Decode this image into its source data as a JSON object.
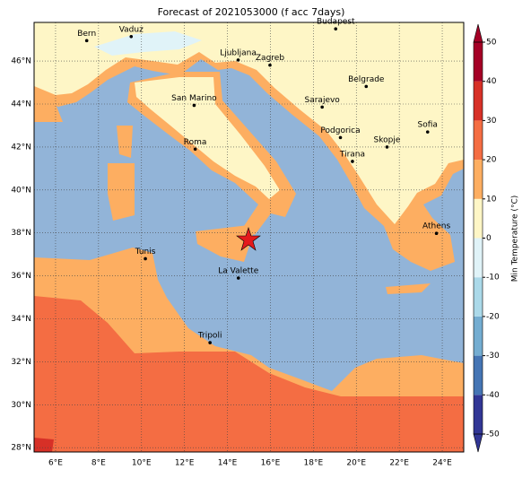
{
  "map": {
    "title": "Forecast of 2021053000 (f acc 7days)",
    "xlim": [
      5,
      25
    ],
    "ylim": [
      27.8,
      47.8
    ],
    "xticks": [
      {
        "value": 6,
        "label": "6°E"
      },
      {
        "value": 8,
        "label": "8°E"
      },
      {
        "value": 10,
        "label": "10°E"
      },
      {
        "value": 12,
        "label": "12°E"
      },
      {
        "value": 14,
        "label": "14°E"
      },
      {
        "value": 16,
        "label": "16°E"
      },
      {
        "value": 18,
        "label": "18°E"
      },
      {
        "value": 20,
        "label": "20°E"
      },
      {
        "value": 22,
        "label": "22°E"
      },
      {
        "value": 24,
        "label": "24°E"
      }
    ],
    "yticks": [
      {
        "value": 28,
        "label": "28°N"
      },
      {
        "value": 30,
        "label": "30°N"
      },
      {
        "value": 32,
        "label": "32°N"
      },
      {
        "value": 34,
        "label": "34°N"
      },
      {
        "value": 36,
        "label": "36°N"
      },
      {
        "value": 38,
        "label": "38°N"
      },
      {
        "value": 40,
        "label": "40°N"
      },
      {
        "value": 42,
        "label": "42°N"
      },
      {
        "value": 44,
        "label": "44°N"
      },
      {
        "value": 46,
        "label": "46°N"
      }
    ],
    "grid": true,
    "cities": [
      {
        "name": "Bern",
        "lon": 7.45,
        "lat": 46.95
      },
      {
        "name": "Vaduz",
        "lon": 9.52,
        "lat": 47.14
      },
      {
        "name": "Budapest",
        "lon": 19.04,
        "lat": 47.5
      },
      {
        "name": "Ljubljana",
        "lon": 14.5,
        "lat": 46.05
      },
      {
        "name": "Zagreb",
        "lon": 15.98,
        "lat": 45.81
      },
      {
        "name": "Belgrade",
        "lon": 20.46,
        "lat": 44.82
      },
      {
        "name": "Sarajevo",
        "lon": 18.41,
        "lat": 43.86
      },
      {
        "name": "San Marino",
        "lon": 12.45,
        "lat": 43.94
      },
      {
        "name": "Sofia",
        "lon": 23.32,
        "lat": 42.7
      },
      {
        "name": "Podgorica",
        "lon": 19.26,
        "lat": 42.44
      },
      {
        "name": "Skopje",
        "lon": 21.43,
        "lat": 42.0
      },
      {
        "name": "Roma",
        "lon": 12.5,
        "lat": 41.9
      },
      {
        "name": "Tirana",
        "lon": 19.82,
        "lat": 41.33
      },
      {
        "name": "Athens",
        "lon": 23.73,
        "lat": 37.98
      },
      {
        "name": "Tunis",
        "lon": 10.18,
        "lat": 36.8
      },
      {
        "name": "La Valette",
        "lon": 14.51,
        "lat": 35.9
      },
      {
        "name": "Tripoli",
        "lon": 13.19,
        "lat": 32.89
      }
    ],
    "colorbar": {
      "label": "Min Temperature (°C)",
      "ticks": [
        -50,
        -40,
        -30,
        -20,
        -10,
        0,
        10,
        20,
        30,
        40,
        50
      ],
      "colors": [
        "#313695",
        "#4575b4",
        "#74add1",
        "#abd9e9",
        "#e0f3f8",
        "#fef6c6",
        "#fdae61",
        "#f46d43",
        "#d73027",
        "#a50026"
      ]
    }
  }
}
